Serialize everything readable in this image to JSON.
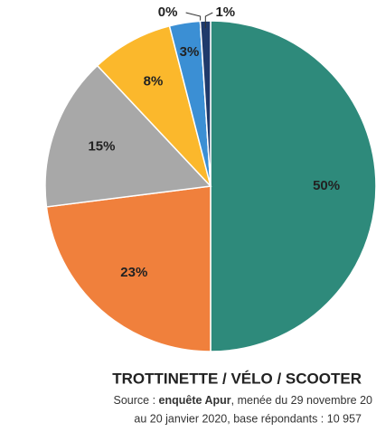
{
  "chart_data": {
    "type": "pie",
    "title": "TROTTINETTE / VÉLO / SCOOTER",
    "source": [
      "Source : ",
      "enquête Apur",
      ", menée du 29 novembre 20",
      "au 20 janvier 2020, base répondants :  10 957"
    ],
    "values": [
      50,
      23,
      15,
      8,
      3,
      0,
      1
    ],
    "value_labels": [
      "50%",
      "23%",
      "15%",
      "8%",
      "3%",
      "0%",
      "1%"
    ],
    "colors": [
      "#2e8a7b",
      "#f0803c",
      "#a8a8a8",
      "#fbb82c",
      "#3b8fd4",
      "#b7d3ec",
      "#1f3a6b"
    ]
  }
}
